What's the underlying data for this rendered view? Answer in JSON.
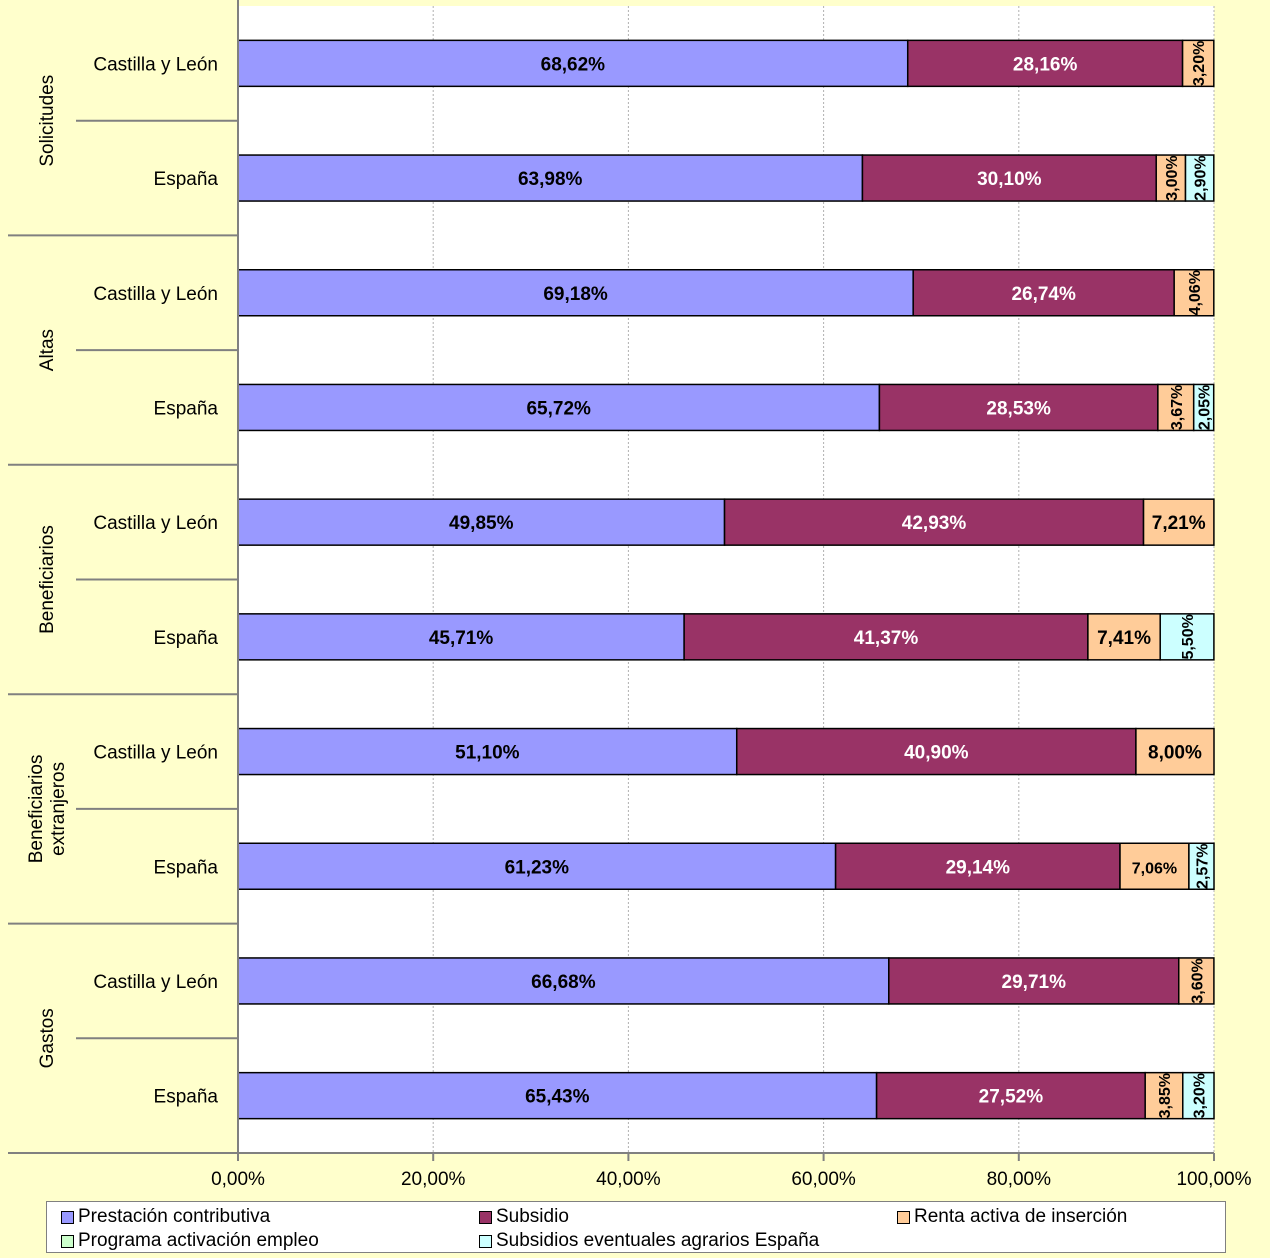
{
  "chart_data": {
    "type": "bar",
    "orientation": "horizontal",
    "stacked": "percent",
    "groups": [
      {
        "label": "Solicitudes",
        "rows": [
          {
            "label": "Castilla y León",
            "values": [
              68.62,
              28.16,
              3.2,
              0,
              0
            ],
            "labels": [
              "68,62%",
              "28,16%",
              "3,20%",
              "",
              ""
            ]
          },
          {
            "label": "España",
            "values": [
              63.98,
              30.1,
              3.0,
              0,
              2.9
            ],
            "labels": [
              "63,98%",
              "30,10%",
              "3,00%",
              "",
              "2,90%"
            ]
          }
        ]
      },
      {
        "label": "Altas",
        "rows": [
          {
            "label": "Castilla y León",
            "values": [
              69.18,
              26.74,
              4.06,
              0,
              0
            ],
            "labels": [
              "69,18%",
              "26,74%",
              "4,06%",
              "",
              ""
            ]
          },
          {
            "label": "España",
            "values": [
              65.72,
              28.53,
              3.67,
              0,
              2.05
            ],
            "labels": [
              "65,72%",
              "28,53%",
              "3,67%",
              "",
              "2,05%"
            ]
          }
        ]
      },
      {
        "label": "Beneficiarios",
        "rows": [
          {
            "label": "Castilla y León",
            "values": [
              49.85,
              42.93,
              7.21,
              0,
              0
            ],
            "labels": [
              "49,85%",
              "42,93%",
              "7,21%",
              "",
              ""
            ]
          },
          {
            "label": "España",
            "values": [
              45.71,
              41.37,
              7.41,
              0,
              5.5
            ],
            "labels": [
              "45,71%",
              "41,37%",
              "7,41%",
              "",
              "5,50%"
            ]
          }
        ]
      },
      {
        "label": "Beneficiarios extranjeros",
        "rows": [
          {
            "label": "Castilla y León",
            "values": [
              51.1,
              40.9,
              8.0,
              0,
              0
            ],
            "labels": [
              "51,10%",
              "40,90%",
              "8,00%",
              "",
              ""
            ]
          },
          {
            "label": "España",
            "values": [
              61.23,
              29.14,
              7.06,
              0,
              2.57
            ],
            "labels": [
              "61,23%",
              "29,14%",
              "7,06%",
              "",
              "2,57%"
            ]
          }
        ]
      },
      {
        "label": "Gastos",
        "rows": [
          {
            "label": "Castilla y León",
            "values": [
              66.68,
              29.71,
              3.6,
              0,
              0
            ],
            "labels": [
              "66,68%",
              "29,71%",
              "3,60%",
              "",
              ""
            ]
          },
          {
            "label": "España",
            "values": [
              65.43,
              27.52,
              3.85,
              0,
              3.2
            ],
            "labels": [
              "65,43%",
              "27,52%",
              "3,85%",
              "",
              "3,20%"
            ]
          }
        ]
      }
    ],
    "series": [
      {
        "name": "Prestación contributiva",
        "color": "#9999FF",
        "text_color": "#000000"
      },
      {
        "name": "Subsidio",
        "color": "#993366",
        "text_color": "#FFFFFF"
      },
      {
        "name": "Renta activa de inserción",
        "color": "#FFCC99",
        "text_color": "#000000"
      },
      {
        "name": "Programa activación empleo",
        "color": "#CCFFCC",
        "text_color": "#000000"
      },
      {
        "name": "Subsidios eventuales agrarios España",
        "color": "#CCFFFF",
        "text_color": "#000000"
      }
    ],
    "xlim": [
      0,
      100
    ],
    "xticks": [
      0,
      20,
      40,
      60,
      80,
      100
    ],
    "xtick_labels": [
      "0,00%",
      "20,00%",
      "40,00%",
      "60,00%",
      "80,00%",
      "100,00%"
    ],
    "grid": true,
    "legend": "bottom",
    "plot_background": "#FFFFFF"
  }
}
